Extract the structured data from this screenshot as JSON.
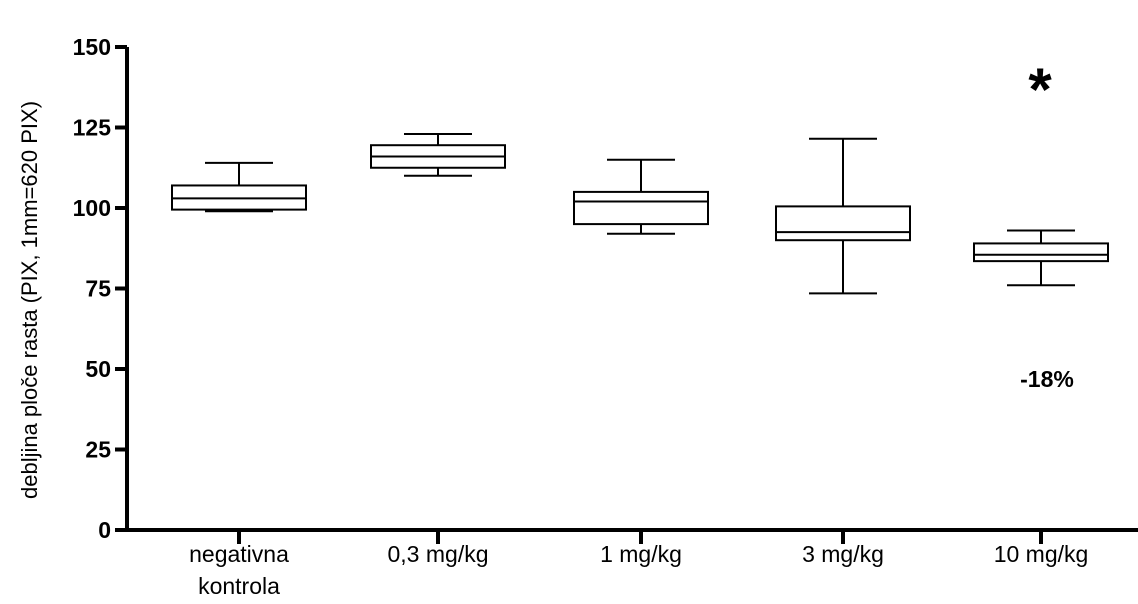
{
  "chart_data": {
    "type": "box",
    "ylabel": "debljina ploče rasta (PIX, 1mm=620 PIX)",
    "xlabel": "",
    "ylim": [
      0,
      150
    ],
    "yticks": [
      0,
      25,
      50,
      75,
      100,
      125,
      150
    ],
    "grid": false,
    "categories": [
      [
        "negativna",
        "kontrola"
      ],
      [
        "0,3 mg/kg"
      ],
      [
        "1 mg/kg"
      ],
      [
        "3 mg/kg"
      ],
      [
        "10 mg/kg"
      ]
    ],
    "boxes": [
      {
        "min": 99,
        "q1": 99.5,
        "median": 103,
        "q3": 107,
        "max": 114
      },
      {
        "min": 110,
        "q1": 112.5,
        "median": 116,
        "q3": 119.5,
        "max": 123
      },
      {
        "min": 92,
        "q1": 95,
        "median": 102,
        "q3": 105,
        "max": 115
      },
      {
        "min": 73.5,
        "q1": 90,
        "median": 92.5,
        "q3": 100.5,
        "max": 121.5
      },
      {
        "min": 76,
        "q1": 83.5,
        "median": 85.5,
        "q3": 89,
        "max": 93
      }
    ],
    "annotations": {
      "star": "*",
      "percent": "-18%"
    }
  }
}
